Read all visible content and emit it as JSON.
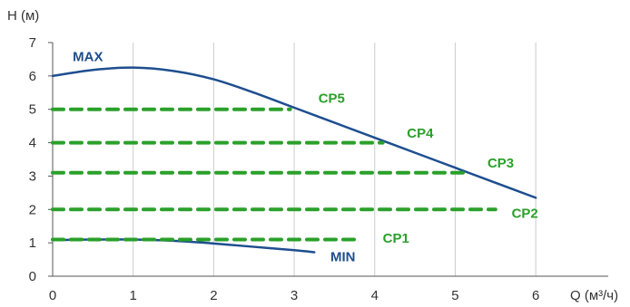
{
  "chart_data": {
    "type": "line",
    "ylabel": "H (м)",
    "xlabel": "Q (м³/ч)",
    "xlim": [
      0,
      6.9
    ],
    "ylim": [
      0,
      7
    ],
    "x_ticks": [
      "0",
      "1",
      "2",
      "3",
      "4",
      "5",
      "6"
    ],
    "y_ticks": [
      "0",
      "1",
      "2",
      "3",
      "4",
      "5",
      "6",
      "7"
    ],
    "grid": "vertical",
    "series": [
      {
        "name": "MAX",
        "style": "solid",
        "color": "#1e4e8f",
        "x": [
          0,
          0.5,
          1.0,
          1.5,
          2.0,
          2.5,
          3.0,
          3.5,
          4.0,
          4.5,
          5.0,
          5.5,
          6.0
        ],
        "y": [
          6.0,
          6.18,
          6.25,
          6.15,
          5.9,
          5.5,
          5.05,
          4.6,
          4.15,
          3.7,
          3.25,
          2.8,
          2.35
        ]
      },
      {
        "name": "MIN",
        "style": "solid",
        "color": "#1e4e8f",
        "x": [
          0,
          0.5,
          1.0,
          1.5,
          2.0,
          2.5,
          3.0,
          3.25
        ],
        "y": [
          1.08,
          1.1,
          1.1,
          1.06,
          0.98,
          0.88,
          0.78,
          0.72
        ]
      },
      {
        "name": "CP5",
        "style": "dashed",
        "color": "#2aa02a",
        "x": [
          0,
          2.95
        ],
        "y": [
          5.0,
          5.0
        ]
      },
      {
        "name": "CP4",
        "style": "dashed",
        "color": "#2aa02a",
        "x": [
          0,
          4.1
        ],
        "y": [
          4.0,
          4.0
        ]
      },
      {
        "name": "CP3",
        "style": "dashed",
        "color": "#2aa02a",
        "x": [
          0,
          5.15
        ],
        "y": [
          3.1,
          3.1
        ]
      },
      {
        "name": "CP2",
        "style": "dashed",
        "color": "#2aa02a",
        "x": [
          0,
          5.5
        ],
        "y": [
          2.0,
          2.0
        ]
      },
      {
        "name": "CP1",
        "style": "dashed",
        "color": "#2aa02a",
        "x": [
          0,
          3.75
        ],
        "y": [
          1.1,
          1.1
        ]
      }
    ],
    "labels": [
      {
        "text": "MAX",
        "series": "MAX",
        "color": "#1e4e8f",
        "x": 0.25,
        "y": 6.45
      },
      {
        "text": "MIN",
        "series": "MIN",
        "color": "#1e4e8f",
        "x": 3.45,
        "y": 0.45
      },
      {
        "text": "CP5",
        "series": "CP5",
        "color": "#2aa02a",
        "x": 3.3,
        "y": 5.2
      },
      {
        "text": "CP4",
        "series": "CP4",
        "color": "#2aa02a",
        "x": 4.4,
        "y": 4.15
      },
      {
        "text": "CP3",
        "series": "CP3",
        "color": "#2aa02a",
        "x": 5.4,
        "y": 3.25
      },
      {
        "text": "CP2",
        "series": "CP2",
        "color": "#2aa02a",
        "x": 5.7,
        "y": 1.75
      },
      {
        "text": "CP1",
        "series": "CP1",
        "color": "#2aa02a",
        "x": 4.1,
        "y": 1.0
      }
    ]
  }
}
